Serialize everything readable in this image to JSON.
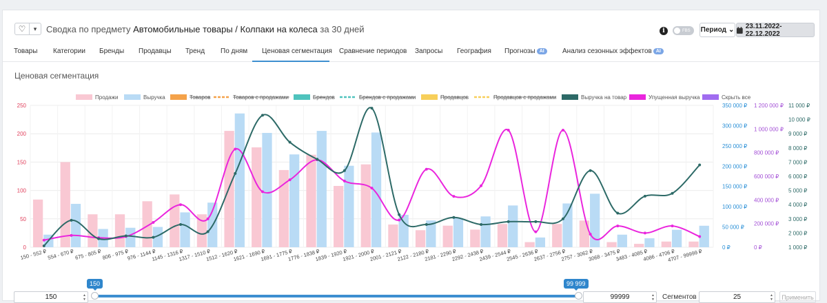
{
  "header": {
    "title_prefix": "Сводка по предмету",
    "title_subject": "Автомобильные товары / Колпаки на колеса",
    "title_suffix": "за 30 дней",
    "fav_icon": "heart-icon",
    "fbs_label": "FBS",
    "period_label": "Период",
    "date_range": "23.11.2022-22.12.2022"
  },
  "tabs": [
    {
      "label": "Товары"
    },
    {
      "label": "Категории"
    },
    {
      "label": "Бренды"
    },
    {
      "label": "Продавцы"
    },
    {
      "label": "Тренд"
    },
    {
      "label": "По дням"
    },
    {
      "label": "Ценовая сегментация"
    },
    {
      "label": "Сравнение периодов"
    },
    {
      "label": "Запросы"
    },
    {
      "label": "География"
    },
    {
      "label": "Прогнозы",
      "badge": "AI"
    },
    {
      "label": "Анализ сезонных эффектов",
      "badge": "AI"
    }
  ],
  "section_title": "Ценовая сегментация",
  "chart_data": {
    "type": "bar",
    "categories": [
      "150 - 552 ₽",
      "554 - 670 ₽",
      "675 - 805 ₽",
      "806 - 975 ₽",
      "976 - 1144 ₽",
      "1145 - 1316 ₽",
      "1317 - 1510 ₽",
      "1512 - 1620 ₽",
      "1621 - 1690 ₽",
      "1691 - 1775 ₽",
      "1776 - 1838 ₽",
      "1839 - 1920 ₽",
      "1921 - 2000 ₽",
      "2001 - 2121 ₽",
      "2122 - 2180 ₽",
      "2181 - 2290 ₽",
      "2292 - 2438 ₽",
      "2439 - 2544 ₽",
      "2545 - 2636 ₽",
      "2637 - 2756 ₽",
      "2757 - 3062 ₽",
      "3068 - 3475 ₽",
      "3483 - 4085 ₽",
      "4086 - 4706 ₽",
      "4707 - 99999 ₽"
    ],
    "legend": [
      {
        "name": "Продажи",
        "color": "#f9c8d3",
        "style": "box",
        "struck": false
      },
      {
        "name": "Выручка",
        "color": "#b9dbf5",
        "style": "box",
        "struck": false
      },
      {
        "name": "Товаров",
        "color": "#f4a24a",
        "style": "box",
        "struck": true
      },
      {
        "name": "Товаров с продажами",
        "color": "#f4a24a",
        "style": "line",
        "struck": true
      },
      {
        "name": "Брендов",
        "color": "#4fc3bd",
        "style": "box",
        "struck": true
      },
      {
        "name": "Брендов с продажами",
        "color": "#4fc3bd",
        "style": "line",
        "struck": true
      },
      {
        "name": "Продавцов",
        "color": "#f7cf5a",
        "style": "box",
        "struck": true
      },
      {
        "name": "Продавцов с продажами",
        "color": "#f7cf5a",
        "style": "line",
        "struck": true
      },
      {
        "name": "Выручка на товар",
        "color": "#2d6a67",
        "style": "box",
        "struck": false
      },
      {
        "name": "Упущенная выручка",
        "color": "#ea25dd",
        "style": "box",
        "struck": false
      },
      {
        "name": "Скрыть все",
        "color": "#a06cf0",
        "style": "box",
        "struck": false
      }
    ],
    "axes": {
      "left": {
        "ticks": [
          "250",
          "200",
          "150",
          "100",
          "50",
          "0"
        ],
        "range": [
          0,
          250
        ],
        "color": "#e0405c"
      },
      "right1": {
        "ticks": [
          "350 000 ₽",
          "300 000 ₽",
          "250 000 ₽",
          "200 000 ₽",
          "150 000 ₽",
          "100 000 ₽",
          "50 000 ₽",
          "0 ₽"
        ],
        "range": [
          0,
          350000
        ],
        "color": "#2a8fd6"
      },
      "right2": {
        "ticks": [
          "1 200 000 ₽",
          "1 000 000 ₽",
          "800 000 ₽",
          "600 000 ₽",
          "400 000 ₽",
          "200 000 ₽",
          "0 ₽"
        ],
        "range": [
          0,
          1200000
        ],
        "color": "#a34fd6"
      },
      "right3": {
        "ticks": [
          "11 000 ₽",
          "10 000 ₽",
          "9 000 ₽",
          "8 000 ₽",
          "7 000 ₽",
          "6 000 ₽",
          "5 000 ₽",
          "4 000 ₽",
          "3 000 ₽",
          "2 000 ₽",
          "1 000 ₽"
        ],
        "range": [
          1000,
          11000
        ],
        "color": "#2d6a67"
      }
    },
    "series": [
      {
        "name": "Продажи",
        "axis": "left",
        "values": [
          84,
          150,
          58,
          58,
          81,
          93,
          58,
          205,
          176,
          136,
          163,
          108,
          146,
          40,
          30,
          38,
          31,
          41,
          9,
          41,
          47,
          9,
          6,
          10,
          10
        ]
      },
      {
        "name": "Выручка",
        "axis": "right1",
        "values": [
          31000,
          107000,
          45000,
          48000,
          50000,
          86000,
          110000,
          330000,
          282000,
          229000,
          287000,
          201000,
          283000,
          80000,
          66000,
          72000,
          76000,
          103000,
          24000,
          108000,
          132000,
          31000,
          22000,
          43000,
          53000
        ]
      },
      {
        "name": "Упущенная выручка",
        "axis": "right2",
        "values": [
          60000,
          100000,
          80000,
          90000,
          210000,
          360000,
          240000,
          830000,
          470000,
          570000,
          740000,
          560000,
          500000,
          230000,
          660000,
          430000,
          520000,
          990000,
          130000,
          990000,
          110000,
          180000,
          120000,
          180000,
          90000
        ]
      },
      {
        "name": "Выручка на товар",
        "axis": "right3",
        "values": [
          1100,
          2900,
          1600,
          1800,
          1700,
          2600,
          2100,
          6200,
          10300,
          8400,
          7200,
          6400,
          10800,
          3300,
          2600,
          3100,
          2600,
          2800,
          2800,
          3000,
          6400,
          3400,
          4600,
          4800,
          6800
        ]
      }
    ]
  },
  "slider": {
    "min_value": "150",
    "max_value": "99999",
    "min_bubble": "150",
    "max_bubble": "99 999",
    "segments_label": "Сегментов",
    "segments_value": "25",
    "apply_label": "Применить"
  }
}
